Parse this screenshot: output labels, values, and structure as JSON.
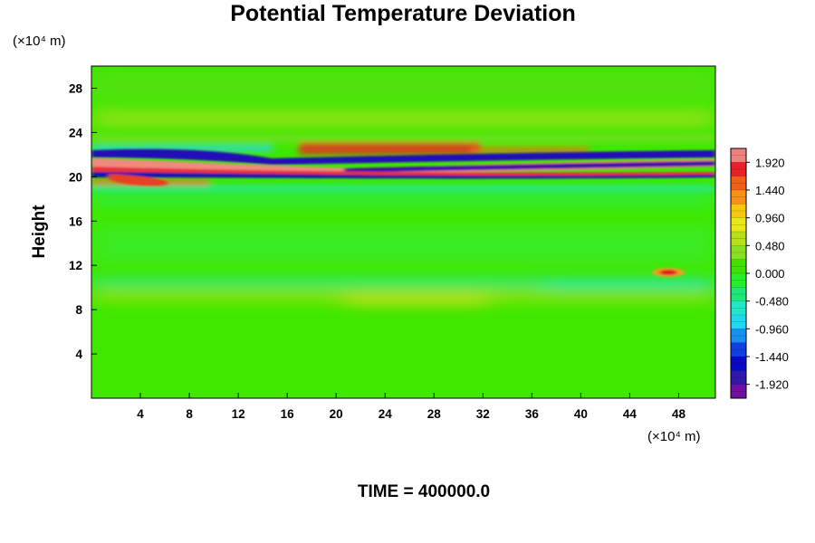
{
  "chart_data": {
    "type": "heatmap",
    "title": "Potential Temperature Deviation",
    "ylabel": "Height",
    "y_unit": "(×10⁴ m)",
    "x_unit": "(×10⁴ m)",
    "xlim": [
      0,
      51
    ],
    "ylim": [
      0,
      30
    ],
    "x_ticks": [
      "4",
      "8",
      "12",
      "16",
      "20",
      "24",
      "28",
      "32",
      "36",
      "40",
      "44",
      "48"
    ],
    "y_ticks": [
      "4",
      "8",
      "12",
      "16",
      "20",
      "24",
      "28"
    ],
    "colorbar": {
      "range": [
        -2.16,
        2.16
      ],
      "labels": [
        "1.920",
        "1.440",
        "0.960",
        "0.480",
        "0.000",
        "-0.480",
        "-0.960",
        "-1.440",
        "-1.920"
      ],
      "colors": [
        "#f08080",
        "#e8202a",
        "#f06018",
        "#f89018",
        "#f8c810",
        "#e8e818",
        "#b8e018",
        "#88e020",
        "#40e000",
        "#28f028",
        "#20e878",
        "#20e8c8",
        "#20d8f0",
        "#1890f0",
        "#1040e0",
        "#0808c8",
        "#3018a8",
        "#7010a0"
      ]
    },
    "features": [
      {
        "name": "upper-band-top",
        "y": 21.9,
        "value": -1.9
      },
      {
        "name": "upper-band-middle",
        "y": 21.2,
        "value": 1.9
      },
      {
        "name": "upper-band-lower",
        "y": 20.7,
        "value": -1.4
      },
      {
        "name": "warm-blob",
        "x": 24,
        "y": 22.5,
        "value": 1.5
      },
      {
        "name": "warm-spot",
        "x": 47.5,
        "y": 11.2,
        "value": 1.9
      }
    ]
  },
  "footer": {
    "time_label": "TIME = 400000.0"
  }
}
